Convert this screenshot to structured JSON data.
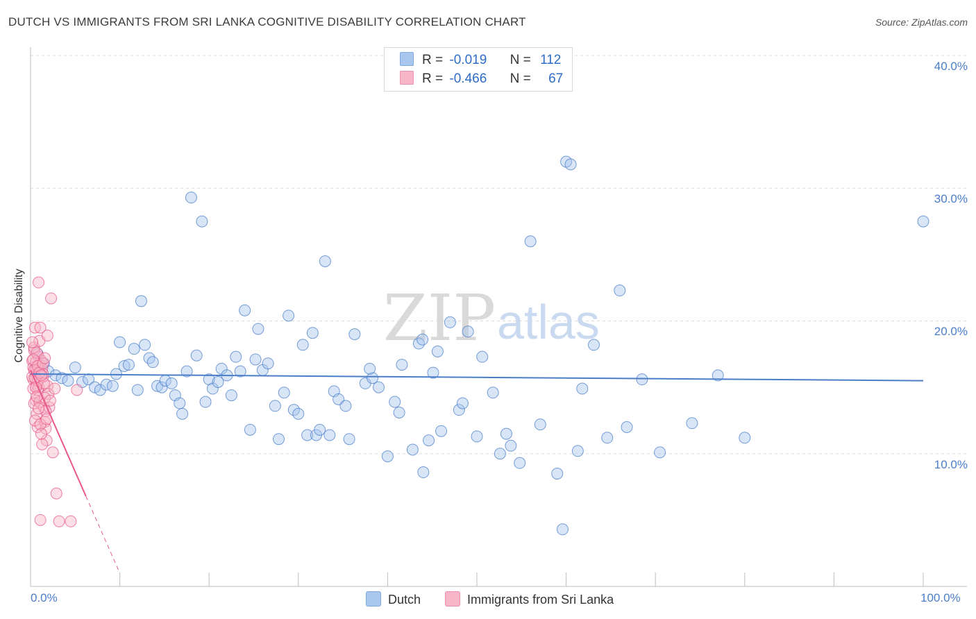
{
  "title": "DUTCH VS IMMIGRANTS FROM SRI LANKA COGNITIVE DISABILITY CORRELATION CHART",
  "source": "Source: ZipAtlas.com",
  "watermark": {
    "zip": "ZIP",
    "atlas": "atlas"
  },
  "legend": {
    "rows": [
      {
        "r_label": "R =",
        "r_value": "-0.019",
        "n_label": "N =",
        "n_value": "112",
        "color": "#a8c6ee"
      },
      {
        "r_label": "R =",
        "r_value": "-0.466",
        "n_label": "N =",
        "n_value": "67",
        "color": "#f7b6c8"
      }
    ]
  },
  "bottom_legend": [
    {
      "label": "Dutch",
      "color": "#a8c6ee"
    },
    {
      "label": "Immigrants from Sri Lanka",
      "color": "#f7b6c8"
    }
  ],
  "chart_data": {
    "type": "scatter",
    "title": "DUTCH VS IMMIGRANTS FROM SRI LANKA COGNITIVE DISABILITY CORRELATION CHART",
    "xlabel": "",
    "ylabel": "Cognitive Disability",
    "xlim": [
      0,
      100
    ],
    "ylim": [
      0,
      40
    ],
    "x_tick_labels": [
      "0.0%",
      "100.0%"
    ],
    "y_ticks": [
      10,
      20,
      30,
      40
    ],
    "y_tick_labels": [
      "10.0%",
      "20.0%",
      "30.0%",
      "40.0%"
    ],
    "grid": true,
    "series": [
      {
        "name": "Dutch",
        "color": "#4a7ec8",
        "fill": "#a8c6ee",
        "trend": {
          "x": [
            0,
            100
          ],
          "y": [
            16.0,
            15.5
          ]
        },
        "points": [
          [
            0.8,
            17.5
          ],
          [
            1.5,
            16.8
          ],
          [
            2.0,
            16.2
          ],
          [
            2.8,
            15.9
          ],
          [
            3.5,
            15.7
          ],
          [
            4.2,
            15.5
          ],
          [
            5.0,
            16.5
          ],
          [
            5.8,
            15.4
          ],
          [
            6.5,
            15.6
          ],
          [
            7.2,
            15.0
          ],
          [
            7.8,
            14.8
          ],
          [
            8.5,
            15.2
          ],
          [
            9.2,
            15.1
          ],
          [
            9.6,
            16.0
          ],
          [
            10.0,
            18.4
          ],
          [
            10.5,
            16.6
          ],
          [
            11.0,
            16.7
          ],
          [
            11.6,
            17.9
          ],
          [
            12.0,
            14.8
          ],
          [
            12.4,
            21.5
          ],
          [
            12.8,
            18.2
          ],
          [
            13.3,
            17.2
          ],
          [
            13.7,
            16.9
          ],
          [
            14.2,
            15.1
          ],
          [
            14.7,
            15.0
          ],
          [
            15.1,
            15.5
          ],
          [
            15.8,
            15.3
          ],
          [
            16.2,
            14.4
          ],
          [
            16.7,
            13.8
          ],
          [
            17.0,
            13.0
          ],
          [
            17.5,
            16.2
          ],
          [
            18.0,
            29.3
          ],
          [
            18.6,
            17.4
          ],
          [
            19.2,
            27.5
          ],
          [
            19.6,
            13.9
          ],
          [
            20.0,
            15.6
          ],
          [
            20.4,
            14.9
          ],
          [
            21.0,
            15.4
          ],
          [
            21.4,
            16.4
          ],
          [
            22.0,
            15.9
          ],
          [
            22.5,
            14.4
          ],
          [
            23.0,
            17.3
          ],
          [
            23.5,
            16.2
          ],
          [
            24.0,
            20.8
          ],
          [
            24.6,
            11.8
          ],
          [
            25.2,
            17.1
          ],
          [
            25.5,
            19.4
          ],
          [
            26.0,
            16.3
          ],
          [
            26.6,
            16.8
          ],
          [
            27.4,
            13.6
          ],
          [
            27.8,
            11.1
          ],
          [
            28.4,
            14.6
          ],
          [
            28.9,
            20.4
          ],
          [
            29.5,
            13.3
          ],
          [
            30.0,
            13.0
          ],
          [
            30.5,
            18.2
          ],
          [
            31.0,
            11.4
          ],
          [
            31.6,
            19.1
          ],
          [
            32.0,
            11.4
          ],
          [
            32.4,
            11.8
          ],
          [
            33.0,
            24.5
          ],
          [
            33.5,
            11.4
          ],
          [
            34.0,
            14.7
          ],
          [
            34.5,
            14.1
          ],
          [
            35.3,
            13.6
          ],
          [
            35.7,
            11.1
          ],
          [
            36.3,
            19.0
          ],
          [
            37.5,
            15.3
          ],
          [
            38.3,
            15.7
          ],
          [
            39.0,
            15.0
          ],
          [
            40.0,
            9.8
          ],
          [
            40.8,
            13.9
          ],
          [
            41.3,
            13.1
          ],
          [
            41.6,
            16.7
          ],
          [
            42.8,
            10.3
          ],
          [
            43.5,
            18.3
          ],
          [
            43.9,
            18.6
          ],
          [
            44.6,
            11.0
          ],
          [
            45.1,
            16.1
          ],
          [
            45.6,
            17.7
          ],
          [
            46.0,
            11.7
          ],
          [
            47.0,
            19.9
          ],
          [
            48.0,
            13.3
          ],
          [
            48.4,
            13.8
          ],
          [
            49.0,
            19.2
          ],
          [
            50.0,
            11.3
          ],
          [
            50.6,
            17.3
          ],
          [
            51.8,
            14.6
          ],
          [
            52.6,
            10.0
          ],
          [
            53.3,
            11.5
          ],
          [
            53.8,
            10.6
          ],
          [
            54.8,
            9.3
          ],
          [
            56.0,
            26.0
          ],
          [
            57.1,
            12.2
          ],
          [
            59.0,
            8.5
          ],
          [
            59.6,
            4.3
          ],
          [
            60.0,
            32.0
          ],
          [
            60.5,
            31.8
          ],
          [
            61.3,
            10.2
          ],
          [
            61.8,
            14.9
          ],
          [
            63.1,
            18.2
          ],
          [
            64.6,
            11.2
          ],
          [
            66.0,
            22.3
          ],
          [
            66.8,
            12.0
          ],
          [
            74.1,
            12.3
          ],
          [
            77.0,
            15.9
          ],
          [
            100.0,
            27.5
          ],
          [
            80.0,
            11.2
          ],
          [
            70.5,
            10.1
          ],
          [
            68.5,
            15.6
          ],
          [
            44.0,
            8.6
          ],
          [
            38.0,
            16.4
          ]
        ]
      },
      {
        "name": "Immigrants from Sri Lanka",
        "color": "#e8588a",
        "fill": "#f7b6c8",
        "trend": {
          "x": [
            0,
            6.2
          ],
          "y": [
            16.3,
            6.8
          ],
          "dashed_extension": {
            "x": [
              6.2,
              10
            ],
            "y": [
              6.8,
              1.0
            ]
          }
        },
        "points": [
          [
            0.2,
            17.0
          ],
          [
            0.3,
            16.5
          ],
          [
            0.4,
            17.8
          ],
          [
            0.5,
            19.5
          ],
          [
            0.6,
            16.0
          ],
          [
            0.7,
            15.2
          ],
          [
            0.8,
            14.8
          ],
          [
            0.9,
            17.3
          ],
          [
            1.0,
            16.7
          ],
          [
            1.1,
            19.5
          ],
          [
            0.3,
            15.6
          ],
          [
            0.4,
            18.0
          ],
          [
            0.5,
            16.2
          ],
          [
            0.6,
            14.0
          ],
          [
            0.7,
            13.0
          ],
          [
            0.8,
            12.0
          ],
          [
            0.9,
            15.0
          ],
          [
            1.0,
            18.5
          ],
          [
            1.2,
            17.0
          ],
          [
            1.3,
            16.4
          ],
          [
            1.4,
            15.8
          ],
          [
            1.5,
            13.5
          ],
          [
            1.6,
            12.4
          ],
          [
            1.7,
            11.9
          ],
          [
            1.8,
            11.0
          ],
          [
            1.9,
            15.1
          ],
          [
            2.0,
            14.5
          ],
          [
            2.1,
            13.5
          ],
          [
            2.3,
            21.7
          ],
          [
            2.5,
            10.1
          ],
          [
            2.7,
            14.9
          ],
          [
            2.9,
            7.0
          ],
          [
            3.2,
            4.9
          ],
          [
            4.5,
            4.9
          ],
          [
            5.2,
            14.8
          ],
          [
            1.1,
            5.0
          ],
          [
            0.9,
            22.9
          ],
          [
            0.2,
            15.8
          ],
          [
            0.3,
            14.9
          ],
          [
            0.4,
            13.8
          ],
          [
            0.5,
            12.5
          ],
          [
            0.6,
            16.9
          ],
          [
            0.7,
            17.6
          ],
          [
            0.8,
            15.5
          ],
          [
            1.0,
            13.9
          ],
          [
            1.1,
            12.2
          ],
          [
            1.2,
            11.5
          ],
          [
            1.3,
            10.7
          ],
          [
            1.4,
            16.0
          ],
          [
            1.5,
            15.3
          ],
          [
            1.6,
            14.2
          ],
          [
            1.7,
            13.2
          ],
          [
            1.8,
            12.6
          ],
          [
            0.2,
            18.4
          ],
          [
            0.3,
            17.1
          ],
          [
            0.4,
            16.3
          ],
          [
            0.5,
            15.7
          ],
          [
            0.6,
            15.0
          ],
          [
            0.7,
            14.3
          ],
          [
            0.8,
            16.6
          ],
          [
            1.0,
            16.1
          ],
          [
            1.2,
            15.9
          ],
          [
            1.4,
            16.8
          ],
          [
            1.6,
            17.2
          ],
          [
            0.9,
            13.4
          ],
          [
            2.2,
            14.0
          ],
          [
            1.9,
            18.9
          ]
        ]
      }
    ]
  }
}
